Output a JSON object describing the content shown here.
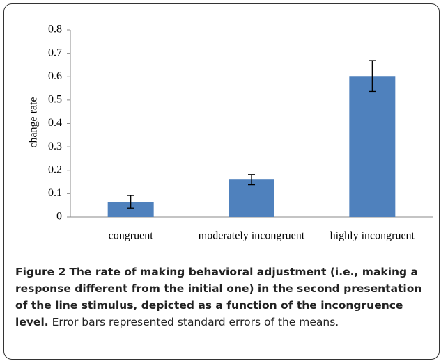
{
  "chart_data": {
    "type": "bar",
    "y_label": "change rate",
    "categories": [
      "congruent",
      "moderately incongruent",
      "highly incongruent"
    ],
    "values": [
      0.065,
      0.16,
      0.603
    ],
    "errors": [
      0.027,
      0.022,
      0.066
    ],
    "color": "#4f81bd",
    "ylim": [
      0,
      0.8
    ],
    "yticks": [
      0,
      0.1,
      0.2,
      0.3,
      0.4,
      0.5,
      0.6,
      0.7,
      0.8
    ],
    "grid": false,
    "figure_label": "Figure 2",
    "caption_title": "The rate of making behavioral adjustment (i.e., making a response different from the initial one) in the second presentation of the line stimulus, depicted as a function of the incongruence level.",
    "caption_text": "Error bars represented standard errors of the means."
  }
}
